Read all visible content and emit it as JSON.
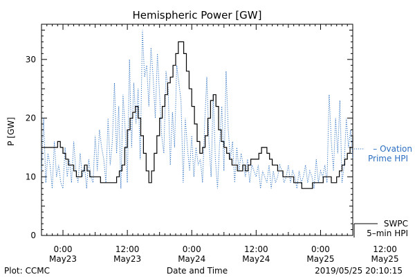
{
  "chart_data": {
    "type": "line",
    "title": "Hemispheric Power [GW]",
    "xlabel": "Date and Time",
    "ylabel": "P [GW]",
    "ylim": [
      0,
      36
    ],
    "yticks": [
      0,
      10,
      20,
      30
    ],
    "xlim_hours": [
      -4,
      54
    ],
    "xticks": [
      {
        "time": "0:00",
        "date": "May23"
      },
      {
        "time": "12:00",
        "date": "May23"
      },
      {
        "time": "0:00",
        "date": "May24"
      },
      {
        "time": "12:00",
        "date": "May24"
      },
      {
        "time": "0:00",
        "date": "May25"
      },
      {
        "time": "12:00",
        "date": "May25"
      }
    ],
    "xtick_hours": [
      0,
      12,
      24,
      36,
      48,
      60
    ],
    "series": [
      {
        "name_lines": [
          "– Ovation",
          "Prime HPI"
        ],
        "color": "#2b6fc2",
        "style": "dotted",
        "x": [
          -4,
          -3.6,
          -3.2,
          -2.8,
          -2.4,
          -2,
          -1.6,
          -1.2,
          -0.8,
          -0.4,
          0,
          0.4,
          0.8,
          1.2,
          1.6,
          2,
          2.4,
          2.8,
          3.2,
          3.6,
          4,
          4.4,
          4.8,
          5.2,
          5.6,
          6,
          6.4,
          6.8,
          7.2,
          7.6,
          8,
          8.4,
          8.8,
          9.2,
          9.6,
          10,
          10.4,
          10.8,
          11.2,
          11.6,
          12,
          12.4,
          12.8,
          13.2,
          13.6,
          14,
          14.4,
          14.8,
          15.2,
          15.6,
          16,
          16.4,
          16.8,
          17.2,
          17.6,
          18,
          18.4,
          18.8,
          19.2,
          19.6,
          20,
          20.4,
          20.8,
          21.2,
          21.6,
          22,
          22.4,
          22.8,
          23.2,
          23.6,
          24,
          24.4,
          24.8,
          25.2,
          25.6,
          26,
          26.4,
          26.8,
          27.2,
          27.6,
          28,
          28.4,
          28.8,
          29.2,
          29.6,
          30,
          30.4,
          30.8,
          31.2,
          31.6,
          32,
          32.4,
          32.8,
          33.2,
          33.6,
          34,
          34.4,
          34.8,
          35.2,
          35.6,
          36,
          36.4,
          36.8,
          37.2,
          37.6,
          38,
          38.4,
          38.8,
          39.2,
          39.6,
          40,
          40.4,
          40.8,
          41.2,
          41.6,
          42,
          42.4,
          42.8,
          43.2,
          43.6,
          44,
          44.4,
          44.8,
          45.2,
          45.6,
          46,
          46.4,
          46.8,
          47.2,
          47.6,
          48,
          48.4,
          48.8,
          49.2,
          49.6,
          50,
          50.4,
          50.8,
          51.2,
          51.6,
          52,
          52.4,
          52.8,
          53.2,
          53.6,
          54
        ],
        "y": [
          11,
          20,
          9,
          14,
          12,
          8,
          16,
          10,
          12,
          9,
          8,
          15,
          10,
          13,
          9,
          16,
          11,
          9,
          14,
          10,
          12,
          8,
          13,
          10,
          9,
          17,
          11,
          18,
          15,
          13,
          9,
          20,
          12,
          16,
          26,
          14,
          22,
          8,
          24,
          18,
          9,
          30,
          15,
          26,
          19,
          25,
          13,
          35,
          27,
          29,
          22,
          32,
          27,
          20,
          31,
          24,
          17,
          14,
          28,
          25,
          12,
          21,
          15,
          29,
          26,
          23,
          9,
          20,
          15,
          11,
          17,
          10,
          15,
          12,
          13,
          9,
          19,
          27,
          16,
          10,
          24,
          13,
          8,
          16,
          22,
          11,
          28,
          18,
          13,
          16,
          9,
          15,
          11,
          14,
          12,
          10,
          13,
          9,
          12,
          11,
          10,
          12,
          8,
          11,
          10,
          9,
          12,
          8,
          11,
          9,
          10,
          12,
          11,
          9,
          10,
          12,
          9,
          11,
          10,
          8,
          11,
          9,
          10,
          12,
          9,
          11,
          10,
          8,
          13,
          9,
          11,
          10,
          12,
          9,
          24,
          16,
          11,
          20,
          14,
          23,
          9,
          12,
          20,
          15,
          18,
          13
        ]
      },
      {
        "name_lines": [
          "SWPC",
          "5–min HPI"
        ],
        "color": "#000000",
        "style": "solid",
        "x": [
          -4,
          -3.5,
          -3,
          -2.5,
          -2,
          -1.5,
          -1,
          -0.5,
          0,
          0.5,
          1,
          1.5,
          2,
          2.5,
          3,
          3.5,
          4,
          4.5,
          5,
          5.5,
          6,
          6.5,
          7,
          7.5,
          8,
          8.5,
          9,
          9.5,
          10,
          10.5,
          11,
          11.5,
          12,
          12.5,
          13,
          13.5,
          14,
          14.5,
          15,
          15.5,
          16,
          16.5,
          17,
          17.5,
          18,
          18.5,
          19,
          19.5,
          20,
          20.5,
          21,
          21.5,
          22,
          22.5,
          23,
          23.5,
          24,
          24.5,
          25,
          25.5,
          26,
          26.5,
          27,
          27.5,
          28,
          28.5,
          29,
          29.5,
          30,
          30.5,
          31,
          31.5,
          32,
          32.5,
          33,
          33.5,
          34,
          34.5,
          35,
          35.5,
          36,
          36.5,
          37,
          37.5,
          38,
          38.5,
          39,
          39.5,
          40,
          40.5,
          41,
          41.5,
          42,
          42.5,
          43,
          43.5,
          44,
          44.5,
          45,
          45.5,
          46,
          46.5,
          47,
          47.5,
          48,
          48.5,
          49,
          49.5,
          50,
          50.5,
          51,
          51.5,
          52,
          52.5,
          53,
          53.5,
          54
        ],
        "y": [
          15,
          15,
          15,
          15,
          15,
          15,
          16,
          15,
          14,
          13,
          12,
          12,
          11,
          10,
          10,
          11,
          12,
          11,
          10,
          10,
          10,
          10,
          9,
          9,
          9,
          9,
          9,
          9,
          10,
          11,
          12,
          15,
          18,
          20,
          21,
          22,
          20,
          17,
          14,
          11,
          9,
          11,
          14,
          17,
          20,
          22,
          24,
          26,
          27,
          29,
          31,
          33,
          33,
          31,
          28,
          25,
          22,
          19,
          16,
          14,
          15,
          17,
          20,
          23,
          24,
          22,
          18,
          16,
          15,
          14,
          13,
          12,
          12,
          11,
          11,
          12,
          11,
          12,
          13,
          13,
          13,
          14,
          15,
          15,
          14,
          13,
          12,
          12,
          11,
          11,
          10,
          10,
          10,
          10,
          9,
          9,
          9,
          8,
          8,
          8,
          8,
          9,
          9,
          9,
          9,
          10,
          10,
          10,
          9,
          9,
          10,
          11,
          12,
          13,
          14,
          15,
          17
        ]
      }
    ],
    "footer_left": "Plot: CCMC",
    "footer_right": "2019/05/25 20:10:15",
    "grid": false
  }
}
